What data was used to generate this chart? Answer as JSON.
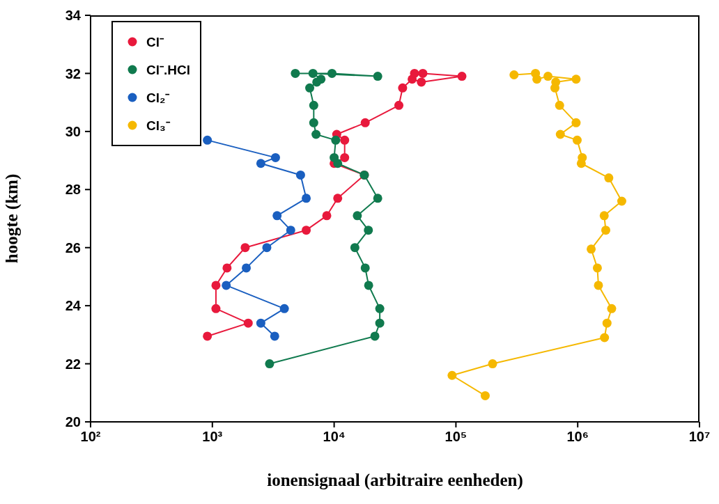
{
  "chart_data": {
    "type": "line",
    "xlabel": "ionensignaal (arbitraire eenheden)",
    "ylabel": "hoogte (km)",
    "log": "x",
    "xlim": [
      100,
      10000000
    ],
    "xticks": [
      {
        "value": 100,
        "label": "10²"
      },
      {
        "value": 1000,
        "label": "10³"
      },
      {
        "value": 10000,
        "label": "10⁴"
      },
      {
        "value": 100000,
        "label": "10⁵"
      },
      {
        "value": 1000000,
        "label": "10⁶"
      },
      {
        "value": 10000000,
        "label": "10⁷"
      }
    ],
    "ylim": [
      20,
      34
    ],
    "yticks": [
      20,
      22,
      24,
      26,
      28,
      30,
      32,
      34
    ],
    "legend": "top left",
    "marker": "circle",
    "line_style": "solid",
    "series": [
      {
        "name": "Cl⁻",
        "color": "#e8193c",
        "x": [
          910,
          1970,
          1070,
          1070,
          1320,
          1860,
          5900,
          8700,
          10700,
          17700,
          10000,
          12200,
          12200,
          10500,
          18000,
          34000,
          36500,
          43700,
          52000,
          112000,
          53500,
          45700
        ],
        "values": [
          22.95,
          23.4,
          23.9,
          24.7,
          25.3,
          26.0,
          26.6,
          27.1,
          27.7,
          28.5,
          28.9,
          29.1,
          29.7,
          29.9,
          30.3,
          30.9,
          31.5,
          31.8,
          31.7,
          31.9,
          32.0,
          32.0
        ]
      },
      {
        "name": "Cl⁻.HCl",
        "color": "#107a4e",
        "x": [
          2950,
          21600,
          23700,
          23700,
          19200,
          18000,
          14800,
          19100,
          15500,
          22800,
          17700,
          10700,
          10000,
          10300,
          7100,
          6800,
          6800,
          6300,
          7200,
          7800,
          6700,
          22800,
          9600,
          4800
        ],
        "values": [
          22.0,
          22.95,
          23.4,
          23.9,
          24.7,
          25.3,
          26.0,
          26.6,
          27.1,
          27.7,
          28.5,
          28.9,
          29.1,
          29.7,
          29.9,
          30.3,
          30.9,
          31.5,
          31.7,
          31.8,
          32.0,
          31.9,
          32.0,
          32.0
        ]
      },
      {
        "name": "Cl₂⁻",
        "color": "#1a5fc0",
        "x": [
          3250,
          2500,
          3900,
          1300,
          1900,
          2800,
          4400,
          3400,
          5900,
          5300,
          2500,
          3300,
          910
        ],
        "values": [
          22.95,
          23.4,
          23.9,
          24.7,
          25.3,
          26.0,
          26.6,
          27.1,
          27.7,
          28.5,
          28.9,
          29.1,
          29.7
        ]
      },
      {
        "name": "Cl₃⁻",
        "color": "#f5b800",
        "x": [
          174000,
          93000,
          200000,
          1660000,
          1740000,
          1900000,
          1480000,
          1450000,
          1290000,
          1700000,
          1650000,
          2300000,
          1800000,
          1070000,
          1090000,
          990000,
          720000,
          970000,
          710000,
          650000,
          660000,
          970000,
          570000,
          462000,
          450000,
          300000
        ],
        "values": [
          20.9,
          21.6,
          22.0,
          22.9,
          23.4,
          23.9,
          24.7,
          25.3,
          25.95,
          26.6,
          27.1,
          27.6,
          28.4,
          28.9,
          29.1,
          29.7,
          29.9,
          30.3,
          30.9,
          31.5,
          31.7,
          31.8,
          31.9,
          31.8,
          32.0,
          31.95
        ]
      }
    ]
  }
}
